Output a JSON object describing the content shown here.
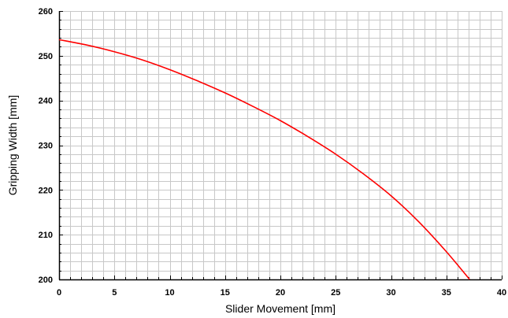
{
  "chart_data": {
    "type": "line",
    "title": "",
    "xlabel": "Slider Movement [mm]",
    "ylabel": "Gripping Width [mm]",
    "xlim": [
      0,
      40
    ],
    "ylim": [
      200,
      260
    ],
    "x_major_ticks": [
      0,
      5,
      10,
      15,
      20,
      25,
      30,
      35,
      40
    ],
    "x_tick_labels": [
      "0",
      "5",
      "10",
      "15",
      "20",
      "25",
      "30",
      "35",
      "40"
    ],
    "y_major_ticks": [
      200,
      210,
      220,
      230,
      240,
      250,
      260
    ],
    "y_tick_labels": [
      "200",
      "210",
      "220",
      "230",
      "240",
      "250",
      "260"
    ],
    "x_minor_step": 1,
    "y_minor_step": 2,
    "grid": true,
    "legend": "none",
    "series": [
      {
        "color": "#ff0000",
        "x": [
          0,
          2.5,
          5,
          7.5,
          10,
          12.5,
          15,
          17.5,
          20,
          22.5,
          25,
          27.5,
          30,
          32.5,
          35,
          37.1
        ],
        "y": [
          253.6,
          252.4,
          250.9,
          249.1,
          246.9,
          244.4,
          241.7,
          238.7,
          235.5,
          231.9,
          228.0,
          223.6,
          218.7,
          212.9,
          206.2,
          200.0
        ]
      }
    ],
    "colors": {
      "grid": "#c8c8c8",
      "axis": "#000000",
      "line": "#ff0000",
      "background": "#ffffff"
    }
  }
}
